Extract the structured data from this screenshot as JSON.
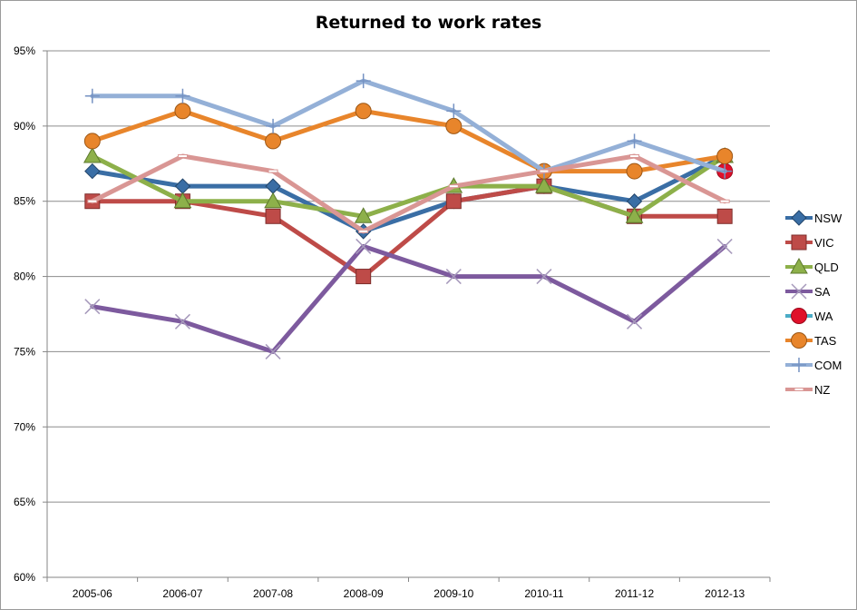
{
  "chart_data": {
    "type": "line",
    "title": "Returned to work rates",
    "xlabel": "",
    "ylabel": "",
    "categories": [
      "2005-06",
      "2006-07",
      "2007-08",
      "2008-09",
      "2009-10",
      "2010-11",
      "2011-12",
      "2012-13"
    ],
    "ylim": [
      60,
      95
    ],
    "yticks": [
      "60%",
      "65%",
      "70%",
      "75%",
      "80%",
      "85%",
      "90%",
      "95%"
    ],
    "grid": true,
    "legend_position": "right",
    "series": [
      {
        "name": "NSW",
        "color": "#3a6ea5",
        "marker": "diamond",
        "values": [
          87,
          86,
          86,
          83,
          85,
          86,
          85,
          88
        ]
      },
      {
        "name": "VIC",
        "color": "#be4b48",
        "marker": "square",
        "values": [
          85,
          85,
          84,
          80,
          85,
          86,
          84,
          84
        ]
      },
      {
        "name": "QLD",
        "color": "#8db04a",
        "marker": "triangle",
        "values": [
          88,
          85,
          85,
          84,
          86,
          86,
          84,
          88
        ]
      },
      {
        "name": "SA",
        "color": "#7d5a9e",
        "marker": "x",
        "values": [
          78,
          77,
          75,
          82,
          80,
          80,
          77,
          82
        ]
      },
      {
        "name": "WA",
        "color": "#4bacc6",
        "marker": "circle-red",
        "values": [
          null,
          null,
          null,
          null,
          null,
          null,
          null,
          87
        ]
      },
      {
        "name": "TAS",
        "color": "#e8852b",
        "marker": "circle",
        "values": [
          89,
          91,
          89,
          91,
          90,
          87,
          87,
          88
        ]
      },
      {
        "name": "COM",
        "color": "#94b0d7",
        "marker": "plus",
        "values": [
          92,
          92,
          90,
          93,
          91,
          87,
          89,
          87
        ]
      },
      {
        "name": "NZ",
        "color": "#d99694",
        "marker": "dash",
        "values": [
          85,
          88,
          87,
          83,
          86,
          87,
          88,
          85
        ]
      }
    ]
  }
}
